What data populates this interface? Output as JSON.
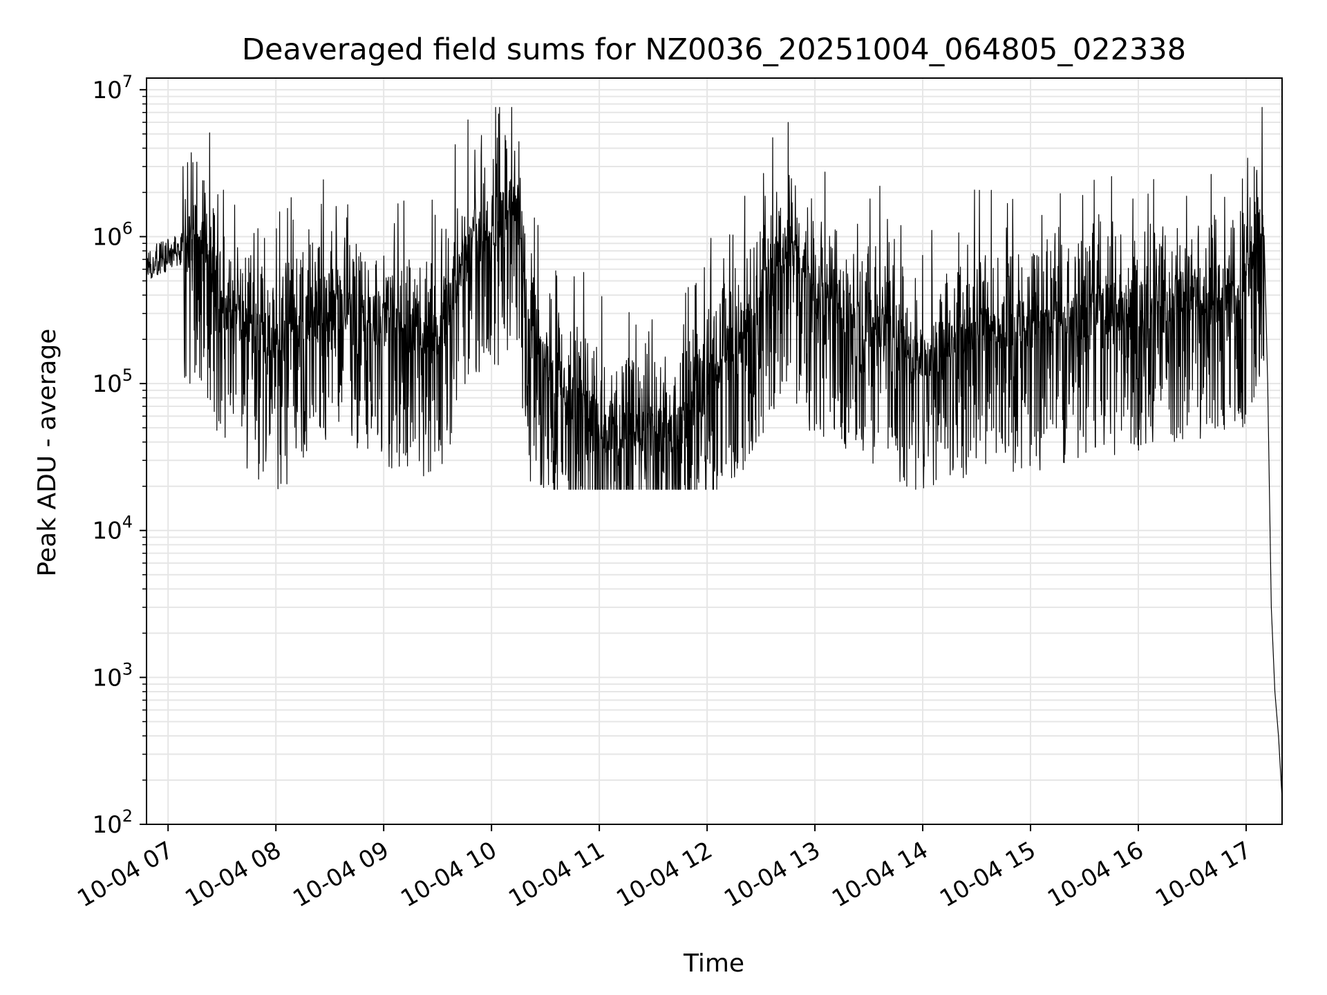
{
  "chart_data": {
    "type": "line",
    "title": "Deaveraged field sums for NZ0036_20251004_064805_022338",
    "xlabel": "Time",
    "ylabel": "Peak ADU - average",
    "yscale": "log",
    "ylim": [
      100,
      12000000
    ],
    "xlim": [
      "2025-10-04 06:48",
      "2025-10-04 17:20"
    ],
    "x_ticks": [
      "10-04 07",
      "10-04 08",
      "10-04 09",
      "10-04 10",
      "10-04 11",
      "10-04 12",
      "10-04 13",
      "10-04 14",
      "10-04 15",
      "10-04 16",
      "10-04 17"
    ],
    "y_ticks": [
      {
        "base": "10",
        "exp": "2",
        "value": 100
      },
      {
        "base": "10",
        "exp": "3",
        "value": 1000
      },
      {
        "base": "10",
        "exp": "4",
        "value": 10000
      },
      {
        "base": "10",
        "exp": "5",
        "value": 100000
      },
      {
        "base": "10",
        "exp": "6",
        "value": 1000000
      },
      {
        "base": "10",
        "exp": "7",
        "value": 10000000
      }
    ],
    "grid": true,
    "series": [
      {
        "color": "#000000",
        "x": [
          "2025-10-04 06:48",
          "2025-10-04 07:10",
          "2025-10-04 07:15",
          "2025-10-04 07:30",
          "2025-10-04 08:00",
          "2025-10-04 08:30",
          "2025-10-04 09:00",
          "2025-10-04 09:30",
          "2025-10-04 09:45",
          "2025-10-04 10:15",
          "2025-10-04 10:20",
          "2025-10-04 10:40",
          "2025-10-04 11:00",
          "2025-10-04 11:30",
          "2025-10-04 11:45",
          "2025-10-04 12:00",
          "2025-10-04 12:30",
          "2025-10-04 12:45",
          "2025-10-04 13:00",
          "2025-10-04 13:30",
          "2025-10-04 14:00",
          "2025-10-04 14:30",
          "2025-10-04 15:00",
          "2025-10-04 15:30",
          "2025-10-04 16:00",
          "2025-10-04 16:30",
          "2025-10-04 17:00",
          "2025-10-04 17:10",
          "2025-10-04 17:12",
          "2025-10-04 17:14",
          "2025-10-04 17:16",
          "2025-10-04 17:18",
          "2025-10-04 17:20"
        ],
        "y": [
          650000,
          850000,
          1200000,
          350000,
          180000,
          350000,
          260000,
          200000,
          800000,
          1800000,
          200000,
          100000,
          50000,
          45000,
          50000,
          100000,
          400000,
          900000,
          400000,
          300000,
          150000,
          250000,
          250000,
          300000,
          350000,
          400000,
          500000,
          1400000,
          100000,
          3000,
          800,
          400,
          150
        ]
      }
    ]
  }
}
